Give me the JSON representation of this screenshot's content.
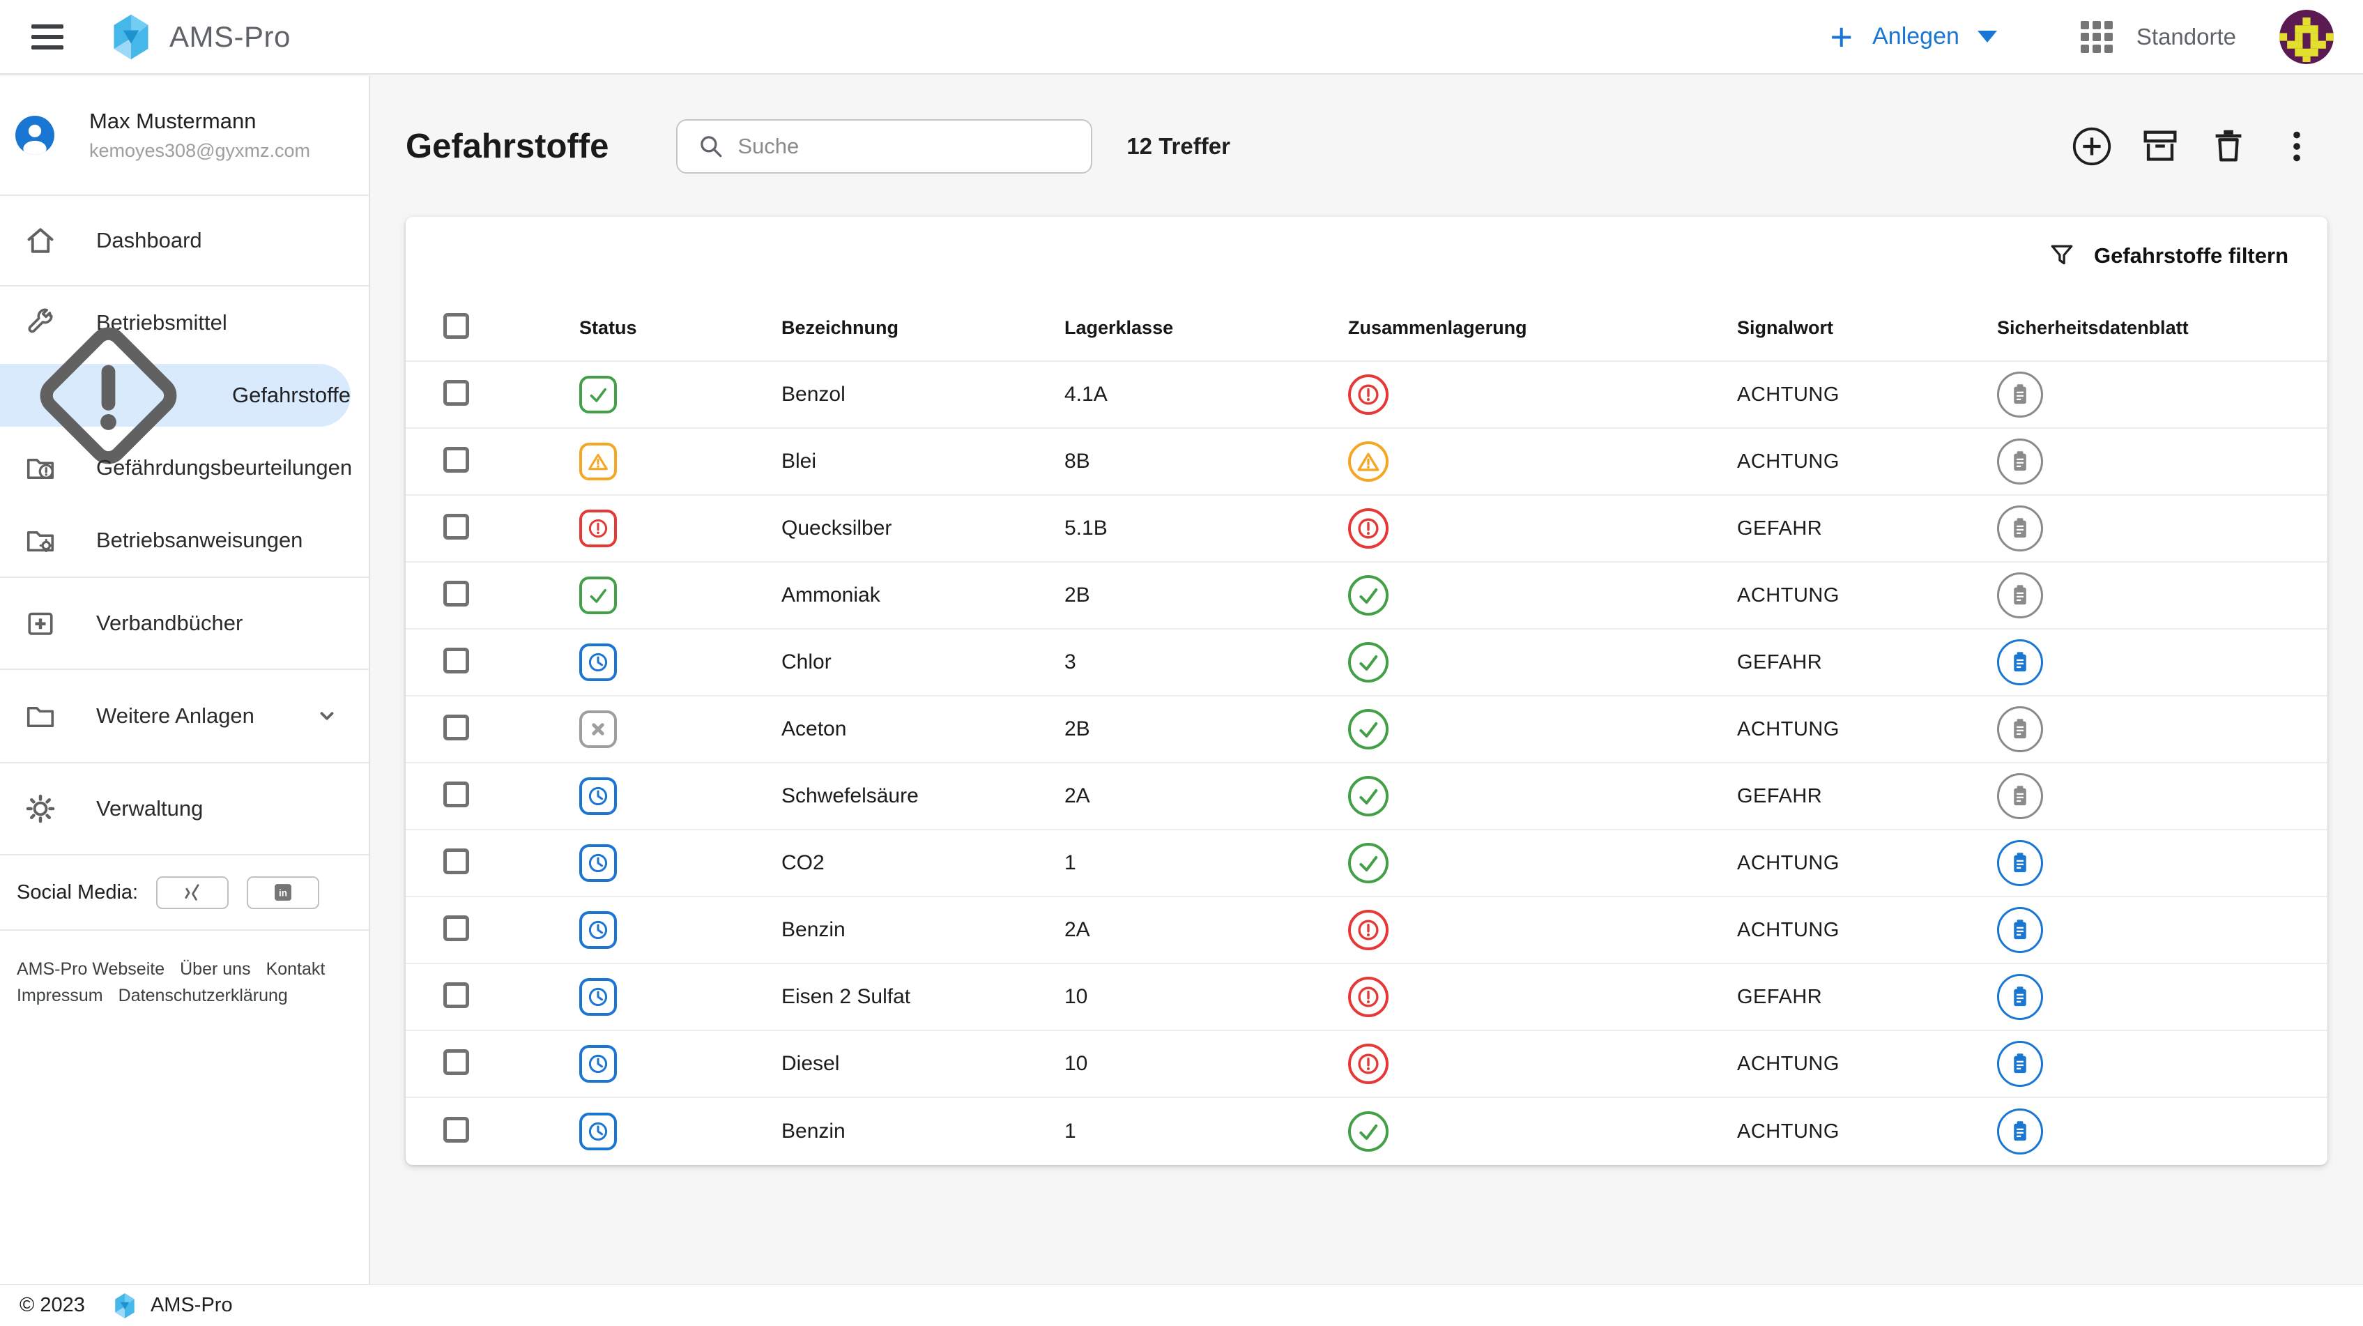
{
  "topbar": {
    "app_name": "AMS-Pro",
    "anlegen_label": "Anlegen",
    "standorte_label": "Standorte"
  },
  "sidebar": {
    "user": {
      "name": "Max Mustermann",
      "email": "kemoyes308@gyxmz.com"
    },
    "items": [
      {
        "label": "Dashboard"
      },
      {
        "label": "Betriebsmittel"
      },
      {
        "label": "Gefahrstoffe"
      },
      {
        "label": "Gefährdungsbeurteilungen"
      },
      {
        "label": "Betriebsanweisungen"
      },
      {
        "label": "Verbandbücher"
      },
      {
        "label": "Weitere Anlagen"
      },
      {
        "label": "Verwaltung"
      }
    ],
    "social_label": "Social Media:",
    "footer_links": [
      "AMS-Pro Webseite",
      "Über uns",
      "Kontakt",
      "Impressum",
      "Datenschutzerklärung"
    ]
  },
  "main": {
    "title": "Gefahrstoffe",
    "search_placeholder": "Suche",
    "results_count": "12 Treffer",
    "filter_label": "Gefahrstoffe filtern",
    "table": {
      "columns": [
        "Status",
        "Bezeichnung",
        "Lagerklasse",
        "Zusammenlagerung",
        "Signalwort",
        "Sicherheitsdatenblatt"
      ],
      "rows": [
        {
          "status": "ok",
          "bezeichnung": "Benzol",
          "lagerklasse": "4.1A",
          "zusammenlagerung": "error",
          "signalwort": "ACHTUNG",
          "sicherheitsdatenblatt": "gray"
        },
        {
          "status": "warning",
          "bezeichnung": "Blei",
          "lagerklasse": "8B",
          "zusammenlagerung": "warning",
          "signalwort": "ACHTUNG",
          "sicherheitsdatenblatt": "gray"
        },
        {
          "status": "error",
          "bezeichnung": "Quecksilber",
          "lagerklasse": "5.1B",
          "zusammenlagerung": "error",
          "signalwort": "GEFAHR",
          "sicherheitsdatenblatt": "gray"
        },
        {
          "status": "ok",
          "bezeichnung": "Ammoniak",
          "lagerklasse": "2B",
          "zusammenlagerung": "ok",
          "signalwort": "ACHTUNG",
          "sicherheitsdatenblatt": "gray"
        },
        {
          "status": "pending",
          "bezeichnung": "Chlor",
          "lagerklasse": "3",
          "zusammenlagerung": "ok",
          "signalwort": "GEFAHR",
          "sicherheitsdatenblatt": "blue"
        },
        {
          "status": "cancel",
          "bezeichnung": "Aceton",
          "lagerklasse": "2B",
          "zusammenlagerung": "ok",
          "signalwort": "ACHTUNG",
          "sicherheitsdatenblatt": "gray"
        },
        {
          "status": "pending",
          "bezeichnung": "Schwefelsäure",
          "lagerklasse": "2A",
          "zusammenlagerung": "ok",
          "signalwort": "GEFAHR",
          "sicherheitsdatenblatt": "gray"
        },
        {
          "status": "pending",
          "bezeichnung": "CO2",
          "lagerklasse": "1",
          "zusammenlagerung": "ok",
          "signalwort": "ACHTUNG",
          "sicherheitsdatenblatt": "blue"
        },
        {
          "status": "pending",
          "bezeichnung": "Benzin",
          "lagerklasse": "2A",
          "zusammenlagerung": "error",
          "signalwort": "ACHTUNG",
          "sicherheitsdatenblatt": "blue"
        },
        {
          "status": "pending",
          "bezeichnung": "Eisen 2 Sulfat",
          "lagerklasse": "10",
          "zusammenlagerung": "error",
          "signalwort": "GEFAHR",
          "sicherheitsdatenblatt": "blue"
        },
        {
          "status": "pending",
          "bezeichnung": "Diesel",
          "lagerklasse": "10",
          "zusammenlagerung": "error",
          "signalwort": "ACHTUNG",
          "sicherheitsdatenblatt": "blue"
        },
        {
          "status": "pending",
          "bezeichnung": "Benzin",
          "lagerklasse": "1",
          "zusammenlagerung": "ok",
          "signalwort": "ACHTUNG",
          "sicherheitsdatenblatt": "blue"
        }
      ]
    }
  },
  "footer": {
    "copyright": "© 2023",
    "app_name": "AMS-Pro"
  },
  "colors": {
    "primary_blue": "#1976d2",
    "success_green": "#43a047",
    "warning_orange": "#f5a623",
    "error_red": "#e53935",
    "neutral_gray": "#9e9e9e",
    "sds_gray": "#8a8a8a",
    "selected_item_bg": "#d9eafc"
  }
}
